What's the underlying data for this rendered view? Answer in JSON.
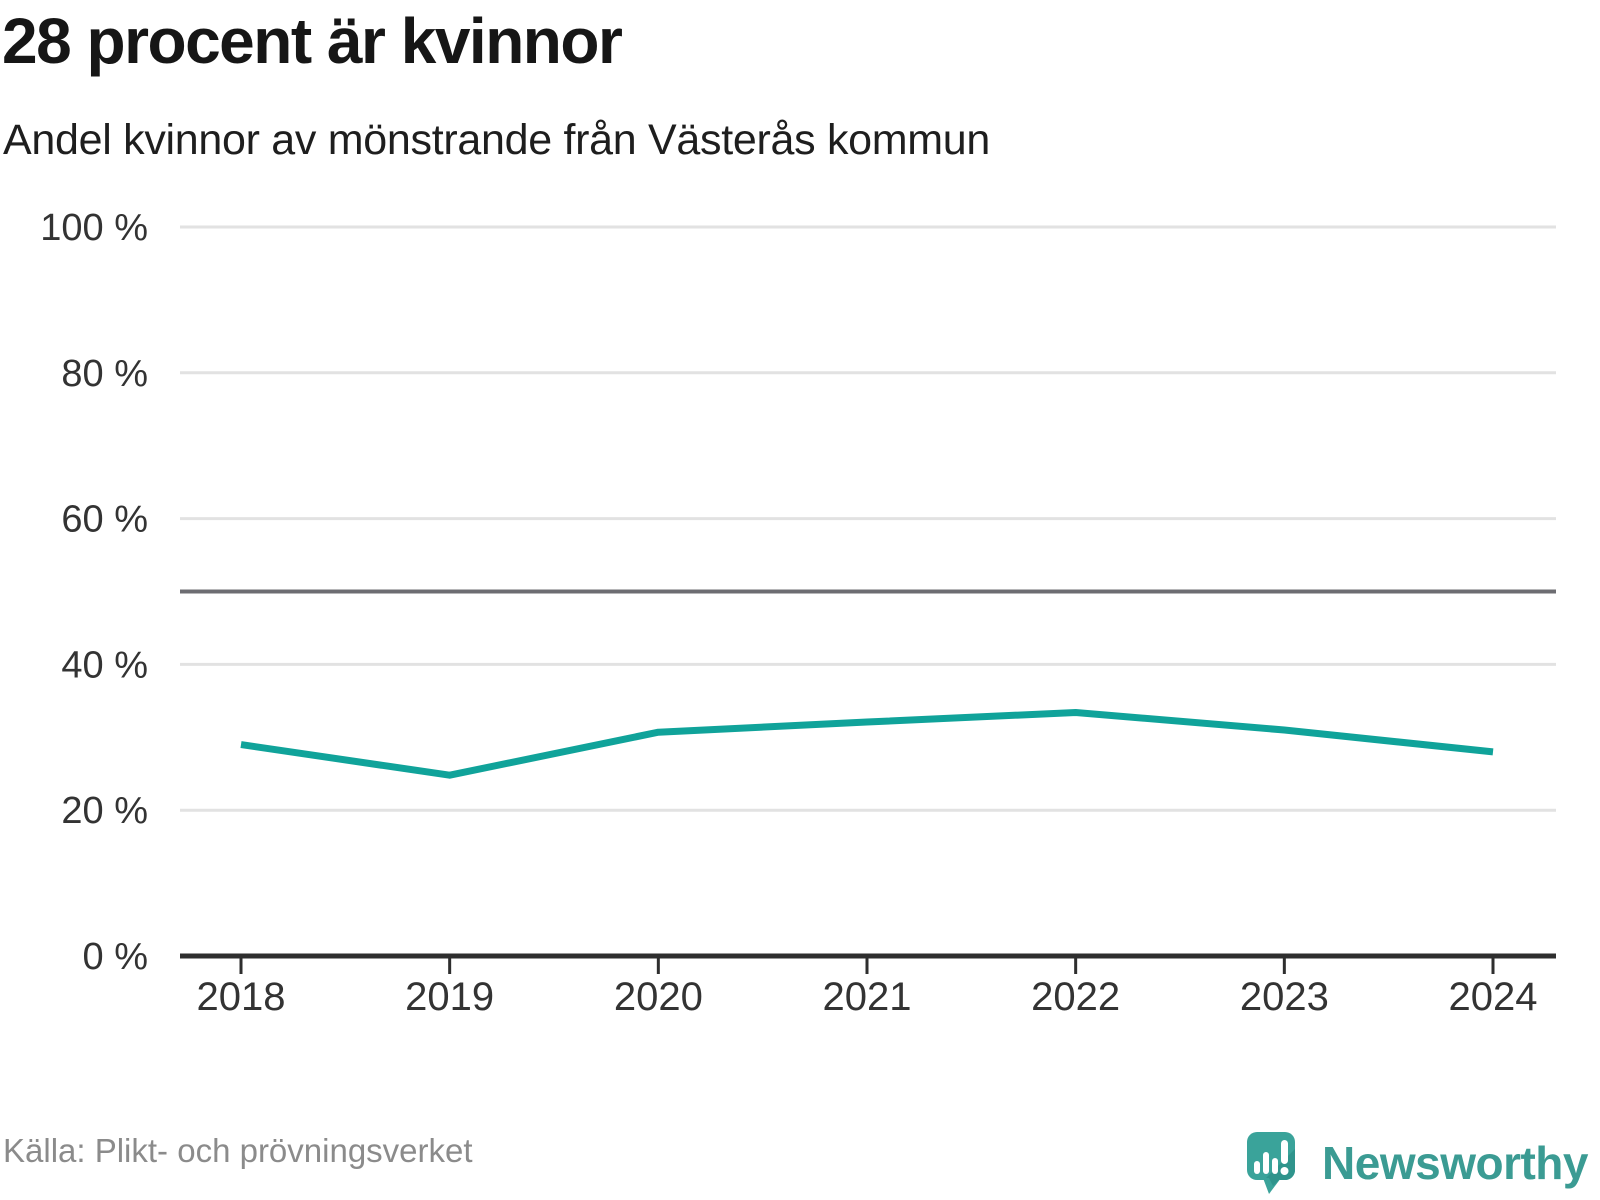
{
  "header": {
    "title": "28 procent är kvinnor",
    "subtitle": "Andel kvinnor av mönstrande från Västerås kommun"
  },
  "chart_data": {
    "type": "line",
    "title": "28 procent är kvinnor",
    "subtitle": "Andel kvinnor av mönstrande från Västerås kommun",
    "categories": [
      2018,
      2019,
      2020,
      2021,
      2022,
      2023,
      2024
    ],
    "series": [
      {
        "name": "Andel kvinnor av mönstrande",
        "values": [
          29.0,
          24.8,
          30.7,
          32.1,
          33.4,
          31.0,
          28.0
        ]
      }
    ],
    "xlabel": "",
    "ylabel": "",
    "ylim": [
      0,
      100
    ],
    "yticks": [
      0,
      20,
      40,
      60,
      80,
      100
    ],
    "ytick_suffix": " %",
    "reference_line": 50,
    "grid": "horizontal",
    "legend": "none"
  },
  "colors": {
    "line": "#10a39a",
    "grid": "#e2e2e2",
    "reference": "#6d6d72",
    "axis": "#2e2e2e",
    "tick_label": "#333333",
    "brand_teal": "#3aa39a",
    "brand_teal_dark": "#2f948c"
  },
  "footer": {
    "source": "Källa: Plikt- och prövningsverket",
    "brand": "Newsworthy"
  }
}
